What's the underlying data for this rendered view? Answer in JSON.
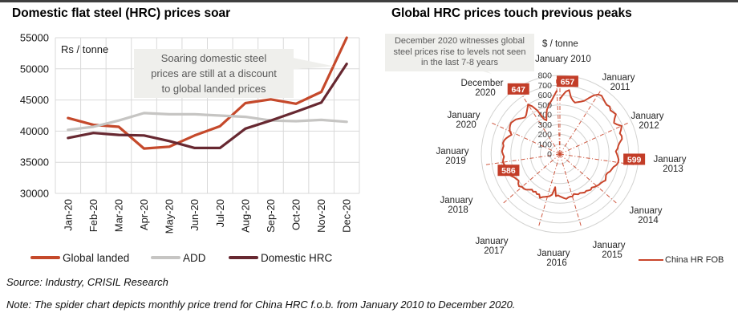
{
  "page": {
    "source": "Source: Industry, CRISIL Research",
    "note": "Note: The spider chart depicts monthly price trend for China HRC f.o.b. from January 2010 to December 2020."
  },
  "colors": {
    "grid": "#d9d9d9",
    "ring": "#d3d3d1",
    "axis_text": "#1a1a1a",
    "annotation_bg": "#efefec",
    "annotation_text": "#595959",
    "label_box_bg": "#c33d28",
    "label_box_text": "#ffffff"
  },
  "chart_data": [
    {
      "type": "line",
      "title": "Domestic flat steel (HRC) prices soar",
      "unit_label": "Rs / tonne",
      "xlabel": "",
      "ylabel": "",
      "ylim": [
        30000,
        55000
      ],
      "ytick_step": 5000,
      "grid": true,
      "legend_position": "bottom",
      "annotation": {
        "lines": [
          "Soaring domestic steel",
          "prices are still at a discount",
          "to global landed prices"
        ]
      },
      "categories": [
        "Jan-20",
        "Feb-20",
        "Mar-20",
        "Apr-20",
        "May-20",
        "Jun-20",
        "Jul-20",
        "Aug-20",
        "Sep-20",
        "Oct-20",
        "Nov-20",
        "Dec-20"
      ],
      "series": [
        {
          "name": "Global landed",
          "color": "#c5492b",
          "values": [
            42100,
            41000,
            40700,
            37200,
            37500,
            39300,
            40800,
            44500,
            45100,
            44400,
            46300,
            55000
          ]
        },
        {
          "name": "ADD",
          "color": "#c6c5c3",
          "values": [
            40200,
            40700,
            41700,
            42900,
            42700,
            42700,
            42500,
            42300,
            41700,
            41600,
            41800,
            41500
          ]
        },
        {
          "name": "Domestic HRC",
          "color": "#672831",
          "values": [
            38900,
            39700,
            39400,
            39300,
            38400,
            37300,
            37300,
            40400,
            41700,
            43100,
            44600,
            50800
          ]
        }
      ]
    },
    {
      "type": "radar",
      "title": "Global HRC prices touch previous peaks",
      "unit_label": "$ / tonne",
      "rlim": [
        0,
        800
      ],
      "rtick_step": 100,
      "grid": true,
      "legend_position": "bottom-right",
      "annotation": {
        "lines": [
          "December 2020 witnesses global",
          "steel prices rise to levels not seen",
          "in the last 7-8 years"
        ]
      },
      "spokes": [
        {
          "label": "January 2010",
          "month_index": 0
        },
        {
          "label": "January 2011",
          "month_index": 12
        },
        {
          "label": "January 2012",
          "month_index": 24
        },
        {
          "label": "January 2013",
          "month_index": 36
        },
        {
          "label": "January 2014",
          "month_index": 48
        },
        {
          "label": "January 2015",
          "month_index": 60
        },
        {
          "label": "January 2016",
          "month_index": 72
        },
        {
          "label": "January 2017",
          "month_index": 84
        },
        {
          "label": "January 2018",
          "month_index": 96
        },
        {
          "label": "January 2019",
          "month_index": 108
        },
        {
          "label": "January 2020",
          "month_index": 120
        },
        {
          "label": "December 2020",
          "month_index": 131
        }
      ],
      "point_labels": [
        {
          "text": "657",
          "month_index": 3,
          "value": 657
        },
        {
          "text": "647",
          "month_index": 131,
          "value": 647
        },
        {
          "text": "599",
          "month_index": 36,
          "value": 599
        },
        {
          "text": "586",
          "month_index": 96,
          "value": 586
        }
      ],
      "series": [
        {
          "name": "China HR FOB",
          "color": "#c9452b",
          "start_month": "January 2010",
          "end_month": "December 2020",
          "values": [
            560,
            600,
            640,
            657,
            590,
            560,
            545,
            560,
            575,
            595,
            640,
            690,
            720,
            730,
            715,
            700,
            690,
            700,
            680,
            690,
            700,
            660,
            635,
            655,
            690,
            670,
            645,
            655,
            650,
            620,
            600,
            590,
            570,
            580,
            590,
            600,
            599,
            585,
            560,
            550,
            540,
            520,
            515,
            525,
            535,
            520,
            510,
            505,
            495,
            485,
            470,
            480,
            470,
            460,
            465,
            455,
            445,
            450,
            440,
            430,
            450,
            445,
            450,
            460,
            450,
            440,
            430,
            420,
            430,
            340,
            420,
            440,
            450,
            460,
            470,
            490,
            460,
            470,
            455,
            470,
            460,
            480,
            500,
            510,
            510,
            530,
            520,
            500,
            510,
            520,
            540,
            560,
            570,
            555,
            565,
            575,
            586,
            580,
            570,
            580,
            590,
            585,
            580,
            590,
            585,
            570,
            550,
            530,
            560,
            575,
            585,
            590,
            580,
            570,
            550,
            530,
            515,
            525,
            545,
            570,
            600,
            560,
            500,
            390,
            370,
            420,
            470,
            500,
            530,
            560,
            600,
            647
          ]
        }
      ]
    }
  ]
}
